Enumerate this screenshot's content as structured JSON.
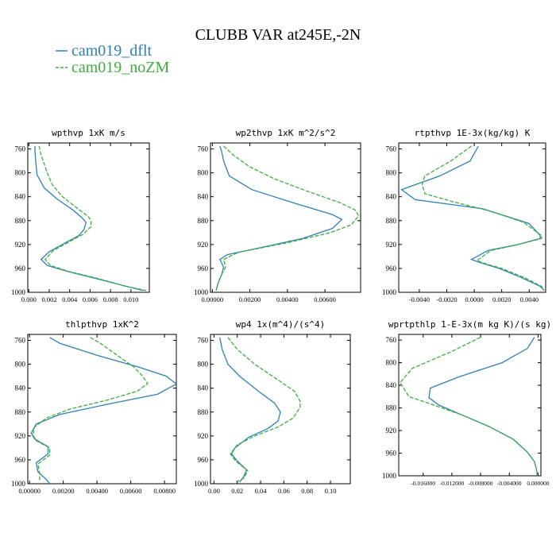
{
  "title": "CLUBB VAR at245E,-2N",
  "legend": [
    {
      "name": "cam019_dflt",
      "color": "#2e7fb8",
      "dash": "solid"
    },
    {
      "name": "cam019_noZM",
      "color": "#3cae3c",
      "dash": "dashed"
    }
  ],
  "chart_data": [
    {
      "type": "line",
      "title": "wpthvp  1xK m/s",
      "ylim": [
        1000,
        750
      ],
      "yticks": [
        760,
        800,
        840,
        880,
        920,
        960,
        1000
      ],
      "xlim": [
        -0.0001,
        0.0118
      ],
      "xticks": [
        0.0,
        0.002,
        0.004,
        0.006,
        0.008,
        0.01
      ],
      "xticklabels": [
        "0.000",
        "0.002",
        "0.004",
        "0.006",
        "0.008",
        "0.010"
      ],
      "series": [
        {
          "name": "cam019_dflt",
          "points": [
            [
              0.0006,
              755
            ],
            [
              0.0006,
              765
            ],
            [
              0.0007,
              785
            ],
            [
              0.0008,
              803
            ],
            [
              0.0015,
              825
            ],
            [
              0.0027,
              843
            ],
            [
              0.0043,
              862
            ],
            [
              0.0052,
              875
            ],
            [
              0.0056,
              883
            ],
            [
              0.0054,
              895
            ],
            [
              0.0049,
              905
            ],
            [
              0.0036,
              917
            ],
            [
              0.002,
              932
            ],
            [
              0.0012,
              945
            ],
            [
              0.0018,
              955
            ],
            [
              0.0038,
              965
            ],
            [
              0.0066,
              977
            ],
            [
              0.0091,
              988
            ],
            [
              0.0112,
              997
            ]
          ]
        },
        {
          "name": "cam019_noZM",
          "points": [
            [
              0.001,
              755
            ],
            [
              0.0012,
              770
            ],
            [
              0.0015,
              785
            ],
            [
              0.0018,
              800
            ],
            [
              0.0023,
              820
            ],
            [
              0.0033,
              840
            ],
            [
              0.0048,
              860
            ],
            [
              0.0058,
              873
            ],
            [
              0.0061,
              880
            ],
            [
              0.0061,
              890
            ],
            [
              0.0053,
              903
            ],
            [
              0.004,
              915
            ],
            [
              0.0024,
              930
            ],
            [
              0.0016,
              945
            ],
            [
              0.0021,
              955
            ],
            [
              0.0039,
              965
            ],
            [
              0.0068,
              977
            ],
            [
              0.0095,
              990
            ],
            [
              0.0115,
              997
            ]
          ]
        }
      ]
    },
    {
      "type": "line",
      "title": "wp2thvp  1xK m^2/s^2",
      "ylim": [
        1000,
        750
      ],
      "yticks": [
        760,
        800,
        840,
        880,
        920,
        960,
        1000
      ],
      "xlim": [
        -0.0001,
        0.0079
      ],
      "xticks": [
        0.0,
        0.002,
        0.004,
        0.006
      ],
      "xticklabels": [
        "0.00000",
        "0.00200",
        "0.00400",
        "0.00600"
      ],
      "series": [
        {
          "name": "cam019_dflt",
          "points": [
            [
              0.0004,
              755
            ],
            [
              0.0005,
              765
            ],
            [
              0.0006,
              780
            ],
            [
              0.0009,
              805
            ],
            [
              0.0021,
              828
            ],
            [
              0.0043,
              850
            ],
            [
              0.0064,
              870
            ],
            [
              0.0069,
              878
            ],
            [
              0.0064,
              893
            ],
            [
              0.0048,
              910
            ],
            [
              0.0026,
              925
            ],
            [
              0.0008,
              937
            ],
            [
              0.0004,
              945
            ],
            [
              0.0006,
              958
            ],
            [
              0.0005,
              970
            ],
            [
              0.0003,
              985
            ],
            [
              0.0002,
              997
            ]
          ]
        },
        {
          "name": "cam019_noZM",
          "points": [
            [
              0.0006,
              755
            ],
            [
              0.0011,
              770
            ],
            [
              0.002,
              790
            ],
            [
              0.0033,
              810
            ],
            [
              0.005,
              830
            ],
            [
              0.0068,
              850
            ],
            [
              0.0076,
              862
            ],
            [
              0.0078,
              872
            ],
            [
              0.0074,
              887
            ],
            [
              0.0063,
              900
            ],
            [
              0.004,
              917
            ],
            [
              0.0014,
              933
            ],
            [
              0.0006,
              945
            ],
            [
              0.0007,
              958
            ],
            [
              0.0005,
              970
            ],
            [
              0.0003,
              985
            ],
            [
              0.0002,
              997
            ]
          ]
        }
      ]
    },
    {
      "type": "line",
      "title": "rtpthvp  1E-3x(kg/kg) K",
      "ylim": [
        1000,
        750
      ],
      "yticks": [
        760,
        800,
        840,
        880,
        920,
        960,
        1000
      ],
      "xlim": [
        -0.0055,
        0.0052
      ],
      "xticks": [
        -0.004,
        -0.002,
        0.0,
        0.002,
        0.004
      ],
      "xticklabels": [
        "-0.0040",
        "-0.0020",
        "0.0000",
        "0.0020",
        "0.0040"
      ],
      "series": [
        {
          "name": "cam019_dflt",
          "points": [
            [
              0.0003,
              755
            ],
            [
              -0.0003,
              780
            ],
            [
              -0.0025,
              805
            ],
            [
              -0.0053,
              828
            ],
            [
              -0.0043,
              845
            ],
            [
              0.0006,
              860
            ],
            [
              0.004,
              885
            ],
            [
              0.0048,
              905
            ],
            [
              0.0048,
              910
            ],
            [
              0.0032,
              920
            ],
            [
              0.001,
              930
            ],
            [
              -0.0002,
              945
            ],
            [
              0.0004,
              950
            ],
            [
              0.0018,
              960
            ],
            [
              0.0034,
              975
            ],
            [
              0.0048,
              990
            ],
            [
              0.0051,
              997
            ]
          ]
        },
        {
          "name": "cam019_noZM",
          "points": [
            [
              -0.0002,
              755
            ],
            [
              -0.0017,
              780
            ],
            [
              -0.0036,
              805
            ],
            [
              -0.0038,
              820
            ],
            [
              -0.0036,
              835
            ],
            [
              -0.0016,
              848
            ],
            [
              0.0013,
              865
            ],
            [
              0.0036,
              883
            ],
            [
              0.0049,
              905
            ],
            [
              0.0049,
              910
            ],
            [
              0.0032,
              920
            ],
            [
              0.0012,
              930
            ],
            [
              0.0002,
              947
            ],
            [
              0.0008,
              952
            ],
            [
              0.002,
              960
            ],
            [
              0.0036,
              975
            ],
            [
              0.0049,
              990
            ],
            [
              0.0051,
              997
            ]
          ]
        }
      ]
    },
    {
      "type": "line",
      "title": "thlpthvp  1xK^2",
      "ylim": [
        1000,
        750
      ],
      "yticks": [
        760,
        800,
        840,
        880,
        920,
        960,
        1000
      ],
      "xlim": [
        -0.0001,
        0.0087
      ],
      "xticks": [
        0.0,
        0.002,
        0.004,
        0.006,
        0.008
      ],
      "xticklabels": [
        "0.00000",
        "0.00200",
        "0.00400",
        "0.00600",
        "0.00800"
      ],
      "series": [
        {
          "name": "cam019_dflt",
          "points": [
            [
              0.0012,
              755
            ],
            [
              0.0018,
              765
            ],
            [
              0.004,
              785
            ],
            [
              0.0065,
              805
            ],
            [
              0.0081,
              820
            ],
            [
              0.0087,
              833
            ],
            [
              0.0076,
              850
            ],
            [
              0.0046,
              867
            ],
            [
              0.0018,
              884
            ],
            [
              0.0004,
              900
            ],
            [
              0.0001,
              915
            ],
            [
              0.0003,
              925
            ],
            [
              0.0011,
              938
            ],
            [
              0.0011,
              950
            ],
            [
              0.0004,
              965
            ],
            [
              0.0005,
              980
            ],
            [
              0.001,
              993
            ],
            [
              0.0012,
              1000
            ]
          ]
        },
        {
          "name": "cam019_noZM",
          "points": [
            [
              0.0036,
              755
            ],
            [
              0.0042,
              765
            ],
            [
              0.0052,
              785
            ],
            [
              0.0062,
              805
            ],
            [
              0.0067,
              820
            ],
            [
              0.007,
              832
            ],
            [
              0.0064,
              845
            ],
            [
              0.0046,
              860
            ],
            [
              0.0024,
              875
            ],
            [
              0.001,
              890
            ],
            [
              0.0003,
              905
            ],
            [
              0.0002,
              918
            ],
            [
              0.0004,
              928
            ],
            [
              0.0012,
              940
            ],
            [
              0.0012,
              952
            ],
            [
              0.0005,
              967
            ],
            [
              0.0006,
              983
            ],
            [
              0.0006,
              997
            ]
          ]
        }
      ]
    },
    {
      "type": "line",
      "title": "wp4  1x(m^4)/(s^4)",
      "ylim": [
        1000,
        750
      ],
      "yticks": [
        760,
        800,
        840,
        880,
        920,
        960,
        1000
      ],
      "xlim": [
        -0.003,
        0.117
      ],
      "xticks": [
        0.0,
        0.02,
        0.04,
        0.06,
        0.08,
        0.1
      ],
      "xticklabels": [
        "0.00",
        "0.02",
        "0.04",
        "0.06",
        "0.08",
        "0.10"
      ],
      "series": [
        {
          "name": "cam019_dflt",
          "points": [
            [
              0.005,
              755
            ],
            [
              0.007,
              775
            ],
            [
              0.012,
              800
            ],
            [
              0.022,
              820
            ],
            [
              0.038,
              845
            ],
            [
              0.052,
              865
            ],
            [
              0.057,
              880
            ],
            [
              0.055,
              895
            ],
            [
              0.046,
              908
            ],
            [
              0.03,
              922
            ],
            [
              0.018,
              940
            ],
            [
              0.015,
              950
            ],
            [
              0.02,
              962
            ],
            [
              0.028,
              977
            ],
            [
              0.025,
              990
            ],
            [
              0.022,
              997
            ]
          ]
        },
        {
          "name": "cam019_noZM",
          "points": [
            [
              0.012,
              755
            ],
            [
              0.02,
              775
            ],
            [
              0.035,
              800
            ],
            [
              0.054,
              825
            ],
            [
              0.069,
              845
            ],
            [
              0.074,
              862
            ],
            [
              0.074,
              872
            ],
            [
              0.068,
              890
            ],
            [
              0.055,
              905
            ],
            [
              0.035,
              920
            ],
            [
              0.02,
              935
            ],
            [
              0.014,
              950
            ],
            [
              0.019,
              963
            ],
            [
              0.029,
              978
            ],
            [
              0.026,
              990
            ],
            [
              0.019,
              997
            ]
          ]
        }
      ]
    },
    {
      "type": "line",
      "title": "wprtpthlp  1-E-3x(m kg K)/(s kg)",
      "ylim": [
        1000,
        750
      ],
      "yticks": [
        760,
        800,
        840,
        880,
        920,
        960,
        1000
      ],
      "xlim": [
        -0.0194,
        0.0004
      ],
      "xticks": [
        -0.016,
        -0.012,
        -0.008,
        -0.004,
        0.0
      ],
      "xticklabels": [
        "-0.016000",
        "-0.012000",
        "-0.008000",
        "-0.004000",
        "0.000000"
      ],
      "series": [
        {
          "name": "cam019_dflt",
          "points": [
            [
              -0.0005,
              755
            ],
            [
              -0.0015,
              775
            ],
            [
              -0.005,
              800
            ],
            [
              -0.011,
              825
            ],
            [
              -0.015,
              845
            ],
            [
              -0.0152,
              862
            ],
            [
              -0.0138,
              875
            ],
            [
              -0.0105,
              893
            ],
            [
              -0.0068,
              913
            ],
            [
              -0.0035,
              935
            ],
            [
              -0.0015,
              958
            ],
            [
              -0.0005,
              975
            ],
            [
              -0.0002,
              990
            ],
            [
              -0.0001,
              1000
            ]
          ]
        },
        {
          "name": "cam019_noZM",
          "points": [
            [
              -0.008,
              755
            ],
            [
              -0.012,
              780
            ],
            [
              -0.0175,
              810
            ],
            [
              -0.0192,
              835
            ],
            [
              -0.018,
              860
            ],
            [
              -0.0145,
              875
            ],
            [
              -0.0105,
              893
            ],
            [
              -0.0068,
              913
            ],
            [
              -0.0035,
              935
            ],
            [
              -0.0015,
              958
            ],
            [
              -0.0005,
              975
            ],
            [
              -0.0002,
              990
            ],
            [
              -0.0001,
              1000
            ]
          ]
        }
      ]
    }
  ]
}
